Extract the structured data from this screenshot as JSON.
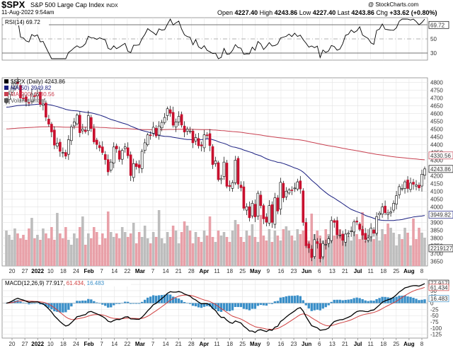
{
  "header": {
    "symbol": "$SPX",
    "name": "S&P 500 Large Cap Index",
    "exchange": "INDX",
    "timestamp": "11-Aug-2022 9:54am",
    "watermark": "@ StockCharts.com",
    "open_label": "Open",
    "open": "4227.40",
    "high_label": "High",
    "high": "4243.86",
    "low_label": "Low",
    "low": "4227.40",
    "last_label": "Last",
    "last": "4243.86",
    "chg_label": "Chg",
    "chg": "+33.62 (+0.80%)"
  },
  "colors": {
    "up": "#ffffff",
    "down": "#c8102e",
    "ma50": "#1a1f80",
    "ma200": "#c84050",
    "vol_up": "#bdbdbd",
    "vol_down": "#e8a0a8",
    "hist": "#3a8fc8",
    "macd": "#000000",
    "signal": "#d04040",
    "rsi": "#000000"
  },
  "chart_data": {
    "type": "candlestick",
    "x_ticks": [
      "20",
      "27",
      "2022",
      "10",
      "18",
      "24",
      "Feb",
      "7",
      "14",
      "22",
      "Mar",
      "7",
      "14",
      "21",
      "28",
      "Apr",
      "11",
      "18",
      "25",
      "May",
      "9",
      "16",
      "23",
      "Jun",
      "6",
      "13",
      "21",
      "Jul",
      "11",
      "18",
      "25",
      "Aug",
      "8"
    ],
    "price_panel": {
      "legend": [
        "$SPX (Daily) 4243.86",
        "MA(50) 3949.82",
        "MA(200) 4330.56",
        "Volume undef"
      ],
      "y_ticks": [
        4800,
        4750,
        4700,
        4650,
        4600,
        4550,
        4500,
        4450,
        4400,
        4350,
        4300,
        4250,
        4200,
        4150,
        4100,
        4050,
        4000,
        3950,
        3900,
        3850,
        3800,
        3750,
        3700,
        3650
      ],
      "ylim": [
        3620,
        4830
      ],
      "last_label": "4243.86",
      "ma50_label": "3949.82",
      "ma200_label": "4330.56",
      "volume_label": "2219127",
      "close": [
        4690,
        4725,
        4766,
        4796,
        4793,
        4700,
        4696,
        4677,
        4670,
        4726,
        4713,
        4726,
        4659,
        4662,
        4577,
        4532,
        4482,
        4397,
        4410,
        4357,
        4350,
        4326,
        4432,
        4515,
        4546,
        4590,
        4477,
        4500,
        4484,
        4587,
        4504,
        4418,
        4401,
        4380,
        4349,
        4304,
        4225,
        4288,
        4385,
        4373,
        4306,
        4363,
        4386,
        4329,
        4201,
        4278,
        4259,
        4252,
        4357,
        4412,
        4463,
        4461,
        4512,
        4456,
        4520,
        4543,
        4575,
        4631,
        4602,
        4525,
        4546,
        4582,
        4526,
        4481,
        4500,
        4488,
        4412,
        4446,
        4393,
        4392,
        4463,
        4459,
        4394,
        4272,
        4296,
        4175,
        4183,
        4288,
        4132,
        4131,
        4155,
        4300,
        4146,
        4123,
        3991,
        4001,
        3930,
        4023,
        3935,
        4088,
        4008,
        3923,
        3901,
        4008,
        3900,
        4058,
        3973,
        4158,
        4058,
        4101,
        4109,
        4105,
        4121,
        4161,
        4115,
        3900,
        3750,
        3735,
        3674,
        3789,
        3764,
        3667,
        3765,
        3759,
        3795,
        3912,
        3900,
        3821,
        3819,
        3785,
        3825,
        3831,
        3845,
        3903,
        3902,
        3855,
        3818,
        3790,
        3801,
        3864,
        3830,
        3937,
        3959,
        3999,
        3962,
        3961,
        3967,
        4023,
        4072,
        4130,
        4119,
        4161,
        4118,
        4153,
        4145,
        4140,
        4122,
        4210,
        4244
      ]
    },
    "rsi_panel": {
      "legend": "RSI(14) 69.72",
      "y_ticks": [
        70,
        50,
        30
      ],
      "ylim": [
        20,
        80
      ],
      "last_label": "69.72"
    },
    "macd_panel": {
      "legend_prefix": "MACD(12,26,9)",
      "macd_value": "77.917",
      "signal_value": "61.434",
      "hist_value": "16.483",
      "y_ticks": [
        75,
        50,
        25,
        0,
        -25,
        -50,
        -75,
        -100,
        -125
      ],
      "ylim": [
        -140,
        95
      ]
    }
  }
}
